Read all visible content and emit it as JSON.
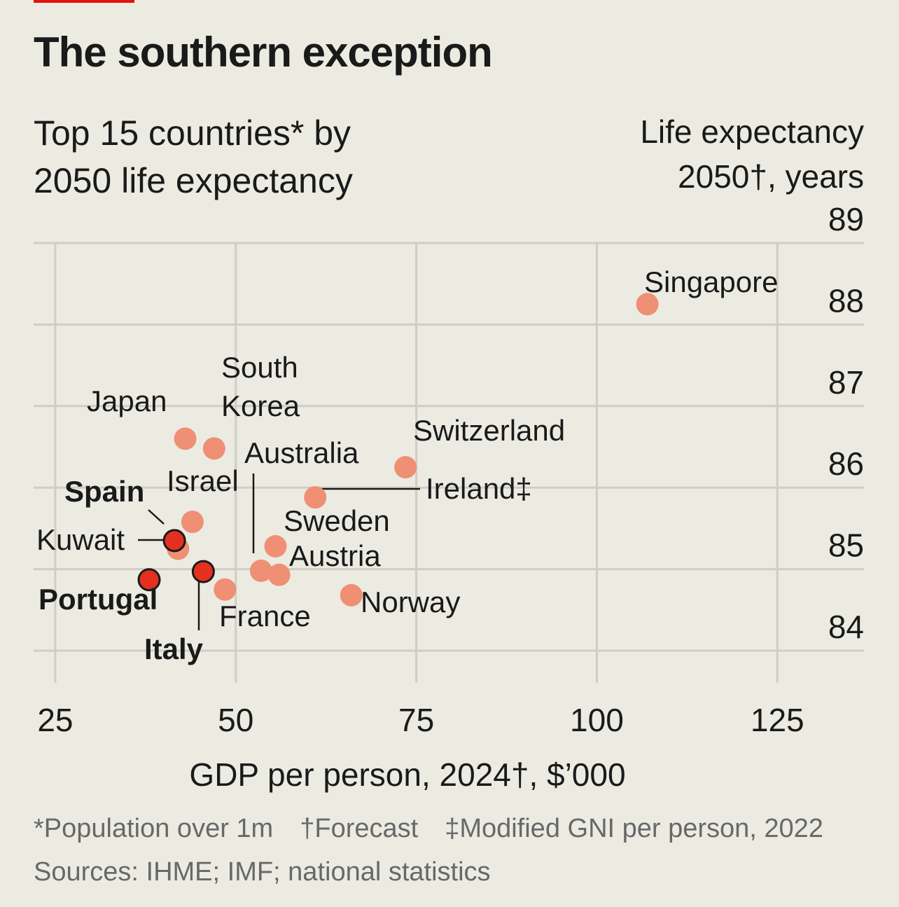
{
  "header": {
    "title": "The southern exception",
    "subtitle": "Top 15 countries* by\n2050 life expectancy",
    "y_title": "Life expectancy\n2050†, years"
  },
  "chart_data": {
    "type": "scatter",
    "xlabel": "GDP per person, 2024†, $’000",
    "ylabel": "Life expectancy 2050†, years",
    "xlim": [
      22,
      137
    ],
    "ylim": [
      83.7,
      89
    ],
    "x_ticks": [
      25,
      50,
      75,
      100,
      125
    ],
    "y_ticks": [
      84,
      85,
      86,
      87,
      88,
      89
    ],
    "grid": true,
    "points": [
      {
        "name": "Singapore",
        "x": 107,
        "y": 88.25,
        "highlight": false
      },
      {
        "name": "Japan",
        "x": 43,
        "y": 86.6,
        "highlight": false
      },
      {
        "name": "South Korea",
        "x": 47,
        "y": 86.48,
        "highlight": false
      },
      {
        "name": "Switzerland",
        "x": 73.5,
        "y": 86.25,
        "highlight": false
      },
      {
        "name": "Ireland‡",
        "x": 61,
        "y": 85.88,
        "highlight": false
      },
      {
        "name": "Israel",
        "x": 44,
        "y": 85.58,
        "highlight": false
      },
      {
        "name": "Spain",
        "x": 41.5,
        "y": 85.35,
        "highlight": true
      },
      {
        "name": "Kuwait",
        "x": 42,
        "y": 85.25,
        "highlight": false
      },
      {
        "name": "Sweden",
        "x": 55.5,
        "y": 85.28,
        "highlight": false
      },
      {
        "name": "Australia",
        "x": 53.5,
        "y": 84.98,
        "highlight": false
      },
      {
        "name": "Austria",
        "x": 56,
        "y": 84.93,
        "highlight": false
      },
      {
        "name": "Italy",
        "x": 45.5,
        "y": 84.97,
        "highlight": true
      },
      {
        "name": "Portugal",
        "x": 38,
        "y": 84.87,
        "highlight": true
      },
      {
        "name": "France",
        "x": 48.5,
        "y": 84.75,
        "highlight": false
      },
      {
        "name": "Norway",
        "x": 66,
        "y": 84.68,
        "highlight": false
      }
    ]
  },
  "labels": {
    "singapore": "Singapore",
    "south": "South",
    "korea": "Korea",
    "japan": "Japan",
    "switzerland": "Switzerland",
    "australia": "Australia",
    "ireland": "Ireland‡",
    "israel": "Israel",
    "spain": "Spain",
    "sweden": "Sweden",
    "kuwait": "Kuwait",
    "austria": "Austria",
    "portugal": "Portugal",
    "france": "France",
    "norway": "Norway",
    "italy": "Italy"
  },
  "footnotes": {
    "population": "*Population over 1m",
    "forecast": "†Forecast",
    "modified": "‡Modified GNI per person, 2022",
    "sources": "Sources: IHME; IMF; national statistics"
  },
  "colors": {
    "background": "#ecebe2",
    "grid": "#cfcdc4",
    "point": "#ef8f73",
    "highlight": "#e3301f",
    "outline": "#1a1a1a",
    "tag": "#e3120b",
    "note_text": "#686868"
  }
}
